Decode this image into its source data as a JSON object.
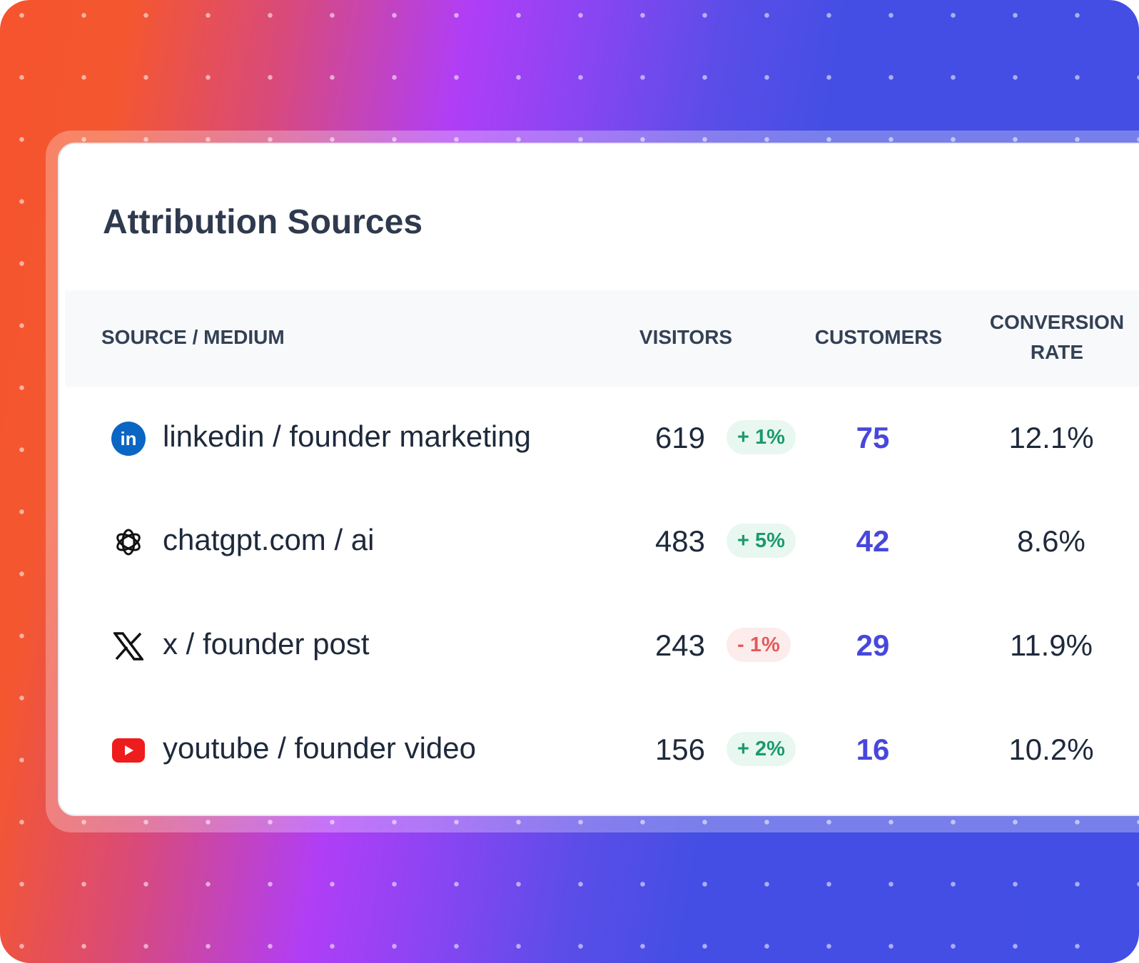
{
  "title": "Attribution Sources",
  "columns": {
    "source": "SOURCE / MEDIUM",
    "visitors": "VISITORS",
    "customers": "CUSTOMERS",
    "conversion_line1": "CONVERSION",
    "conversion_line2": "RATE"
  },
  "colors": {
    "customers": "#4747dc",
    "positive": "#1c9a6c",
    "negative": "#e25b5b"
  },
  "rows": [
    {
      "icon": "linkedin-icon",
      "source": "linkedin / founder marketing",
      "visitors": "619",
      "change": "+ 1%",
      "trend": "up",
      "customers": "75",
      "conversion": "12.1%"
    },
    {
      "icon": "chatgpt-icon",
      "source": "chatgpt.com / ai",
      "visitors": "483",
      "change": "+ 5%",
      "trend": "up",
      "customers": "42",
      "conversion": "8.6%"
    },
    {
      "icon": "x-icon",
      "source": "x / founder post",
      "visitors": "243",
      "change": "- 1%",
      "trend": "down",
      "customers": "29",
      "conversion": "11.9%"
    },
    {
      "icon": "youtube-icon",
      "source": "youtube / founder video",
      "visitors": "156",
      "change": "+ 2%",
      "trend": "up",
      "customers": "16",
      "conversion": "10.2%"
    }
  ]
}
